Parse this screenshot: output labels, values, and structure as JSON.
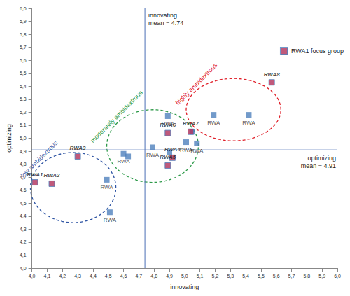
{
  "chart_data": {
    "type": "scatter",
    "x_label": "innovating",
    "y_label": "optimizing",
    "xlim": [
      4.0,
      6.0
    ],
    "ylim": [
      4.0,
      6.0
    ],
    "xticks": [
      {
        "value": 4.0,
        "label": "4,0"
      },
      {
        "value": 4.1,
        "label": "4,1"
      },
      {
        "value": 4.2,
        "label": "4,2"
      },
      {
        "value": 4.3,
        "label": "4,3"
      },
      {
        "value": 4.4,
        "label": "4,4"
      },
      {
        "value": 4.5,
        "label": "4,5"
      },
      {
        "value": 4.6,
        "label": "4,6"
      },
      {
        "value": 4.7,
        "label": "4,7"
      },
      {
        "value": 4.8,
        "label": "4,8"
      },
      {
        "value": 4.9,
        "label": "4,9"
      },
      {
        "value": 5.0,
        "label": "5,0"
      },
      {
        "value": 5.1,
        "label": "5,1"
      },
      {
        "value": 5.2,
        "label": "5,2"
      },
      {
        "value": 5.3,
        "label": "5,3"
      },
      {
        "value": 5.4,
        "label": "5,4"
      },
      {
        "value": 5.5,
        "label": "5,5"
      },
      {
        "value": 5.6,
        "label": "5,6"
      },
      {
        "value": 5.7,
        "label": "5,7"
      },
      {
        "value": 5.8,
        "label": "5,8"
      },
      {
        "value": 5.9,
        "label": "5,9"
      },
      {
        "value": 6.0,
        "label": "6,0"
      }
    ],
    "yticks": [
      {
        "value": 4.0,
        "label": "4,0"
      },
      {
        "value": 4.1,
        "label": "4,1"
      },
      {
        "value": 4.2,
        "label": "4,2"
      },
      {
        "value": 4.3,
        "label": "4,3"
      },
      {
        "value": 4.4,
        "label": "4,4"
      },
      {
        "value": 4.5,
        "label": "4,5"
      },
      {
        "value": 4.6,
        "label": "4,6"
      },
      {
        "value": 4.7,
        "label": "4,7"
      },
      {
        "value": 4.8,
        "label": "4,8"
      },
      {
        "value": 4.9,
        "label": "4,9"
      },
      {
        "value": 5.0,
        "label": "5,0"
      },
      {
        "value": 5.1,
        "label": "5,1"
      },
      {
        "value": 5.2,
        "label": "5,2"
      },
      {
        "value": 5.3,
        "label": "5,3"
      },
      {
        "value": 5.4,
        "label": "5,4"
      },
      {
        "value": 5.5,
        "label": "5,5"
      },
      {
        "value": 5.6,
        "label": "5,6"
      },
      {
        "value": 5.7,
        "label": "5,7"
      },
      {
        "value": 5.8,
        "label": "5,8"
      },
      {
        "value": 5.9,
        "label": "5,9"
      },
      {
        "value": 6.0,
        "label": "6,0"
      }
    ],
    "grid": false,
    "legend": "top-right",
    "series": [
      {
        "color": "#4f81bd",
        "marker": "square",
        "x": [
          4.49,
          4.51,
          4.6,
          4.63,
          4.79,
          4.89,
          4.9,
          5.01,
          5.05,
          5.08,
          5.19,
          5.42
        ],
        "values": [
          4.68,
          4.43,
          4.88,
          4.86,
          4.93,
          5.17,
          4.89,
          4.97,
          5.05,
          4.96,
          5.18,
          5.18
        ],
        "labels": [
          "RWA",
          "RWA",
          "RWA",
          null,
          "RWA",
          "RWA",
          null,
          "RWA",
          null,
          "RWA",
          "RWA",
          "RWA"
        ]
      },
      {
        "name": "RWA1 focus group",
        "color": "#b0305a",
        "marker": "square",
        "x": [
          4.02,
          4.13,
          4.3,
          4.92,
          4.89,
          4.89,
          5.04,
          5.57
        ],
        "values": [
          4.66,
          4.65,
          4.86,
          4.85,
          4.79,
          5.04,
          5.05,
          5.43
        ],
        "labels": [
          "RWA1",
          "RWA2",
          "RWA3",
          "RWA4",
          "RWA5",
          "RWA6",
          "RWA7",
          "RWA8"
        ]
      }
    ],
    "reference_lines": [
      {
        "axis": "x",
        "value": 4.74,
        "label": [
          "innovating",
          "mean = 4.74"
        ],
        "color": "#4a6fb5"
      },
      {
        "axis": "y",
        "value": 4.91,
        "label": [
          "optimizing",
          "mean = 4.91"
        ],
        "color": "#4a6fb5"
      }
    ],
    "regions": [
      {
        "label": "low ambidextrous",
        "color": "#2f55a4",
        "center": [
          4.27,
          4.62
        ],
        "radii": [
          0.28,
          0.27
        ]
      },
      {
        "label": "moderately ambidextrous",
        "color": "#2e9a4a",
        "center": [
          4.79,
          4.94
        ],
        "radii": [
          0.3,
          0.28
        ]
      },
      {
        "label": "highly ambidextrous",
        "color": "#e0202a",
        "center": [
          5.32,
          5.22
        ],
        "radii": [
          0.31,
          0.24
        ]
      }
    ]
  }
}
